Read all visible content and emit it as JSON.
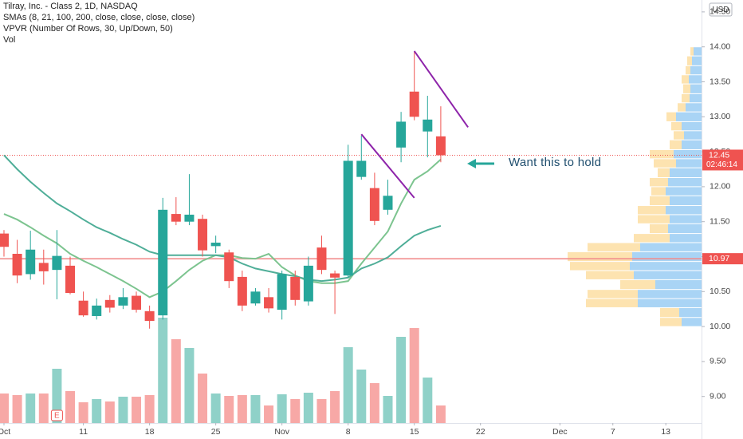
{
  "chart_data": {
    "type": "candlestick",
    "title": "Tilray, Inc. - Class 2, 1D, NASDAQ",
    "legend_lines": [
      "SMAs (8, 21, 100, 200, close, close, close, close)",
      "VPVR (Number Of Rows, 30, Up/Down, 50)",
      "Vol"
    ],
    "currency": "USD",
    "up_color": "#26a69a",
    "down_color": "#ef5350",
    "grid": false,
    "xlim": [
      -0.3,
      52.7
    ],
    "xticks": [
      {
        "value": 0,
        "label": "Oct"
      },
      {
        "value": 6,
        "label": "11"
      },
      {
        "value": 11,
        "label": "18"
      },
      {
        "value": 16,
        "label": "25"
      },
      {
        "value": 21,
        "label": "Nov"
      },
      {
        "value": 26,
        "label": "8"
      },
      {
        "value": 31,
        "label": "15"
      },
      {
        "value": 36,
        "label": "22"
      },
      {
        "value": 42,
        "label": "Dec"
      },
      {
        "value": 46,
        "label": "7"
      },
      {
        "value": 50,
        "label": "13"
      }
    ],
    "ylim": [
      8.62,
      14.67
    ],
    "yticks": [
      {
        "value": 9,
        "label": "9.00"
      },
      {
        "value": 9.5,
        "label": "9.50"
      },
      {
        "value": 10,
        "label": "10.00"
      },
      {
        "value": 10.5,
        "label": "10.50"
      },
      {
        "value": 11,
        "label": "11.00"
      },
      {
        "value": 11.5,
        "label": "11.50"
      },
      {
        "value": 12,
        "label": "12.00"
      },
      {
        "value": 12.5,
        "label": "12.50"
      },
      {
        "value": 13,
        "label": "13.00"
      },
      {
        "value": 13.5,
        "label": "13.50"
      },
      {
        "value": 14,
        "label": "14.00"
      },
      {
        "value": 14.5,
        "label": "14.50"
      }
    ],
    "open": [
      11.33,
      11.04,
      10.75,
      10.91,
      10.81,
      10.87,
      10.37,
      10.15,
      10.38,
      10.3,
      10.44,
      10.22,
      10.16,
      11.61,
      11.5,
      11.54,
      11.15,
      11.06,
      10.71,
      10.33,
      10.42,
      10.24,
      10.71,
      10.36,
      11.13,
      10.76,
      10.73,
      12.14,
      11.98,
      11.67,
      12.56,
      13.36,
      12.79,
      12.72
    ],
    "high": [
      11.38,
      11.24,
      11.37,
      11.1,
      11.38,
      11.0,
      10.5,
      10.4,
      10.45,
      10.55,
      10.5,
      10.3,
      11.84,
      11.85,
      12.18,
      11.6,
      11.3,
      11.1,
      10.8,
      10.55,
      10.55,
      10.8,
      10.8,
      11.0,
      11.3,
      10.8,
      12.6,
      12.73,
      12.2,
      12.1,
      13.07,
      13.93,
      13.3,
      13.15
    ],
    "low": [
      11.0,
      10.62,
      10.67,
      10.6,
      10.39,
      10.46,
      10.14,
      10.1,
      10.2,
      10.25,
      10.2,
      9.97,
      10.1,
      11.45,
      11.45,
      11.0,
      11.05,
      10.55,
      10.22,
      10.3,
      10.2,
      10.1,
      10.3,
      10.3,
      10.75,
      10.18,
      10.7,
      12.1,
      11.45,
      11.6,
      12.35,
      12.95,
      12.42,
      12.35
    ],
    "close": [
      11.14,
      10.73,
      11.1,
      10.79,
      11.01,
      10.48,
      10.16,
      10.3,
      10.27,
      10.42,
      10.24,
      10.08,
      11.67,
      11.5,
      11.6,
      11.09,
      11.2,
      10.65,
      10.3,
      10.5,
      10.26,
      10.75,
      10.38,
      10.87,
      10.81,
      10.7,
      12.37,
      12.37,
      11.51,
      11.87,
      12.93,
      13.0,
      12.96,
      12.45
    ],
    "volume": [
      37,
      35,
      37,
      37,
      68,
      40,
      26,
      30,
      27,
      33,
      33,
      35,
      132,
      105,
      94,
      62,
      37,
      34,
      35,
      35,
      22,
      36,
      30,
      38,
      30,
      40,
      95,
      67,
      50,
      34,
      108,
      119,
      57,
      22
    ],
    "volume_up_color": "#8fd1c8",
    "volume_down_color": "#f7a8a6",
    "sma_lines": [
      {
        "color": "#7cc48f",
        "values": [
          11.61,
          11.53,
          11.42,
          11.3,
          11.19,
          11.04,
          10.94,
          10.85,
          10.75,
          10.65,
          10.54,
          10.42,
          10.5,
          10.65,
          10.81,
          10.94,
          11.02,
          11.02,
          10.98,
          10.97,
          11.04,
          10.85,
          10.73,
          10.65,
          10.62,
          10.62,
          10.65,
          10.9,
          11.13,
          11.36,
          11.76,
          12.1,
          12.22,
          12.39
        ]
      },
      {
        "color": "#4fae98",
        "values": [
          12.45,
          12.25,
          12.07,
          11.91,
          11.76,
          11.65,
          11.53,
          11.42,
          11.34,
          11.25,
          11.17,
          11.07,
          11.02,
          11.02,
          11.02,
          11.02,
          11.02,
          10.99,
          10.9,
          10.83,
          10.79,
          10.75,
          10.72,
          10.67,
          10.65,
          10.67,
          10.7,
          10.83,
          10.9,
          10.99,
          11.15,
          11.3,
          11.38,
          11.44
        ]
      }
    ],
    "vpvr": {
      "up_color": "#a9d4f5",
      "down_color": "#fde3b0",
      "bins": [
        10.0,
        10.13,
        10.27,
        10.4,
        10.53,
        10.67,
        10.8,
        10.93,
        11.07,
        11.2,
        11.33,
        11.47,
        11.6,
        11.73,
        11.87,
        12.0,
        12.13,
        12.27,
        12.4,
        12.53,
        12.67,
        12.8,
        12.93,
        13.07,
        13.2,
        13.33,
        13.47,
        13.6,
        13.73,
        13.87,
        14.0
      ],
      "up": [
        25,
        28,
        80,
        80,
        58,
        85,
        90,
        87,
        77,
        40,
        42,
        40,
        45,
        40,
        45,
        42,
        40,
        32,
        35,
        25,
        22,
        25,
        32,
        20,
        15,
        14,
        16,
        14,
        12,
        10
      ],
      "down": [
        27,
        24,
        65,
        63,
        44,
        60,
        75,
        81,
        66,
        45,
        23,
        40,
        35,
        25,
        18,
        23,
        15,
        28,
        30,
        15,
        13,
        13,
        12,
        10,
        10,
        9,
        9,
        6,
        6,
        4
      ]
    },
    "trendlines": [
      {
        "color": "#8e24aa",
        "x": [
          31,
          35.06
        ],
        "y": [
          13.94,
          12.85
        ]
      },
      {
        "color": "#8e24aa",
        "x": [
          27,
          31
        ],
        "y": [
          12.75,
          11.84
        ]
      }
    ],
    "hline": {
      "value": 10.97,
      "label": "10.97",
      "color": "#f28b8b"
    },
    "last_price": {
      "value": 12.45,
      "label": "12.45",
      "countdown": "02:46:14"
    },
    "earnings": {
      "index": 4,
      "label": "E"
    },
    "annotation": "Want this to hold"
  }
}
